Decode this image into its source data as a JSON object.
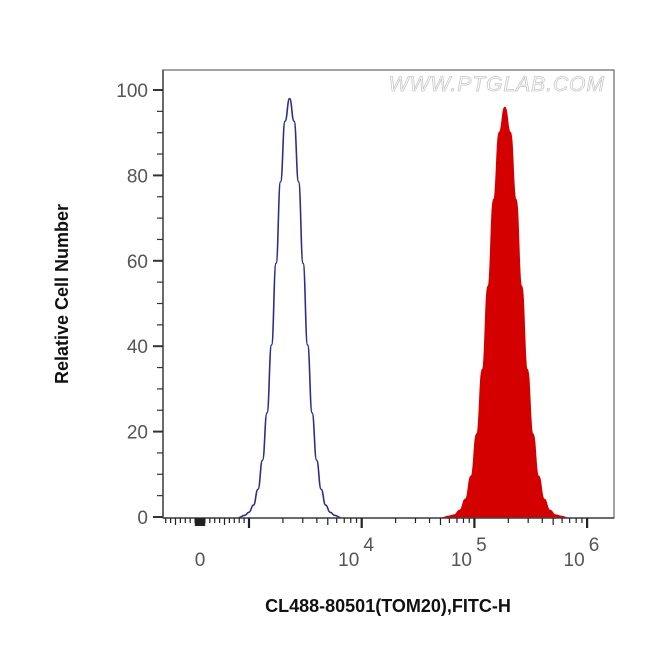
{
  "chart_data": {
    "type": "area",
    "title": "",
    "watermark": "WWW.PTGLAB.COM",
    "xlabel": "CL488-80501(TOM20),FITC-H",
    "ylabel": "Relative Cell Number",
    "xscale": "biexponential (log above 10^3)",
    "xlim": [
      -150,
      1300000
    ],
    "ylim": [
      0,
      100
    ],
    "x_ticks": [
      {
        "value": 0,
        "base": "0",
        "exp": ""
      },
      {
        "value": 10000,
        "base": "10",
        "exp": "4"
      },
      {
        "value": 100000,
        "base": "10",
        "exp": "5"
      },
      {
        "value": 1000000,
        "base": "10",
        "exp": "6"
      }
    ],
    "y_ticks": [
      {
        "value": 0,
        "label": "0"
      },
      {
        "value": 20,
        "label": "20"
      },
      {
        "value": 40,
        "label": "40"
      },
      {
        "value": 60,
        "label": "60"
      },
      {
        "value": 80,
        "label": "80"
      },
      {
        "value": 100,
        "label": "100"
      }
    ],
    "grid": false,
    "series": [
      {
        "style": "outline",
        "color": "#2b2f8c",
        "x": [
          912,
          1000,
          1096,
          1202,
          1318,
          1445,
          1585,
          1738,
          1905,
          2089,
          2291,
          2512,
          2754,
          3020,
          3311,
          3631,
          3981,
          4365,
          4786,
          5248,
          5754
        ],
        "y": [
          0.4,
          1.1,
          2.8,
          6.5,
          13.3,
          24.4,
          40.3,
          59.4,
          78.5,
          92.7,
          98,
          92.7,
          78.5,
          59.4,
          40.3,
          24.4,
          13.3,
          6.5,
          2.8,
          1.1,
          0.4
        ]
      },
      {
        "style": "filled",
        "color": "#d40000",
        "x": [
          58884,
          66069,
          74131,
          83176,
          93325,
          104713,
          117490,
          131826,
          147911,
          165959,
          186209,
          208930,
          234423,
          263027,
          295121,
          331131,
          371535,
          416869,
          467735,
          524807,
          588844
        ],
        "y": [
          0.2,
          0.5,
          1.6,
          4.2,
          9.6,
          19.5,
          34.6,
          54.1,
          74.4,
          90.1,
          96,
          90.1,
          74.4,
          54.1,
          34.6,
          19.5,
          9.6,
          4.2,
          1.6,
          0.5,
          0.2
        ]
      }
    ]
  }
}
